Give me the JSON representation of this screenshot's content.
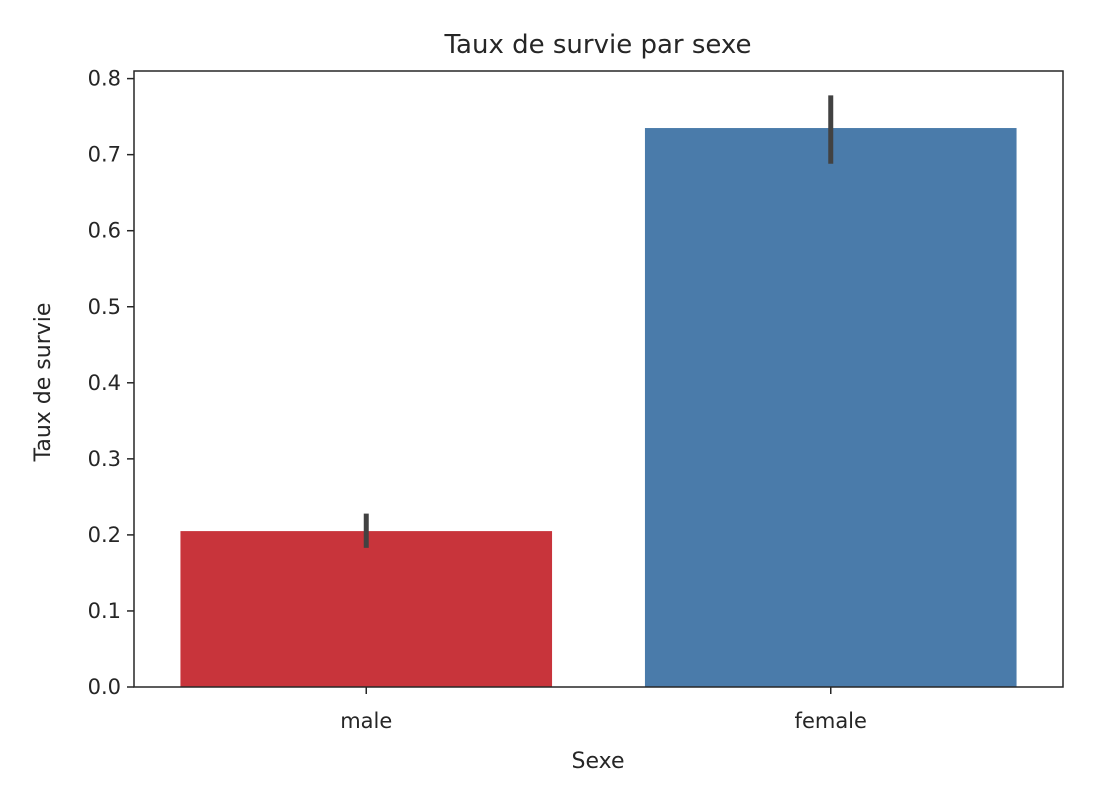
{
  "chart_data": {
    "type": "bar",
    "title": "Taux de survie par sexe",
    "xlabel": "Sexe",
    "ylabel": "Taux de survie",
    "categories": [
      "male",
      "female"
    ],
    "values": [
      0.205,
      0.735
    ],
    "error_bars": [
      {
        "low": 0.183,
        "high": 0.228
      },
      {
        "low": 0.688,
        "high": 0.778
      }
    ],
    "colors": [
      "#c8343b",
      "#4a7baa"
    ],
    "errorbar_color": "#424242",
    "ylim": [
      0,
      0.81
    ],
    "yticks": [
      "0.0",
      "0.1",
      "0.2",
      "0.3",
      "0.4",
      "0.5",
      "0.6",
      "0.7",
      "0.8"
    ],
    "ytick_values": [
      0,
      0.1,
      0.2,
      0.3,
      0.4,
      0.5,
      0.6,
      0.7,
      0.8
    ],
    "grid": false,
    "legend": "none"
  }
}
